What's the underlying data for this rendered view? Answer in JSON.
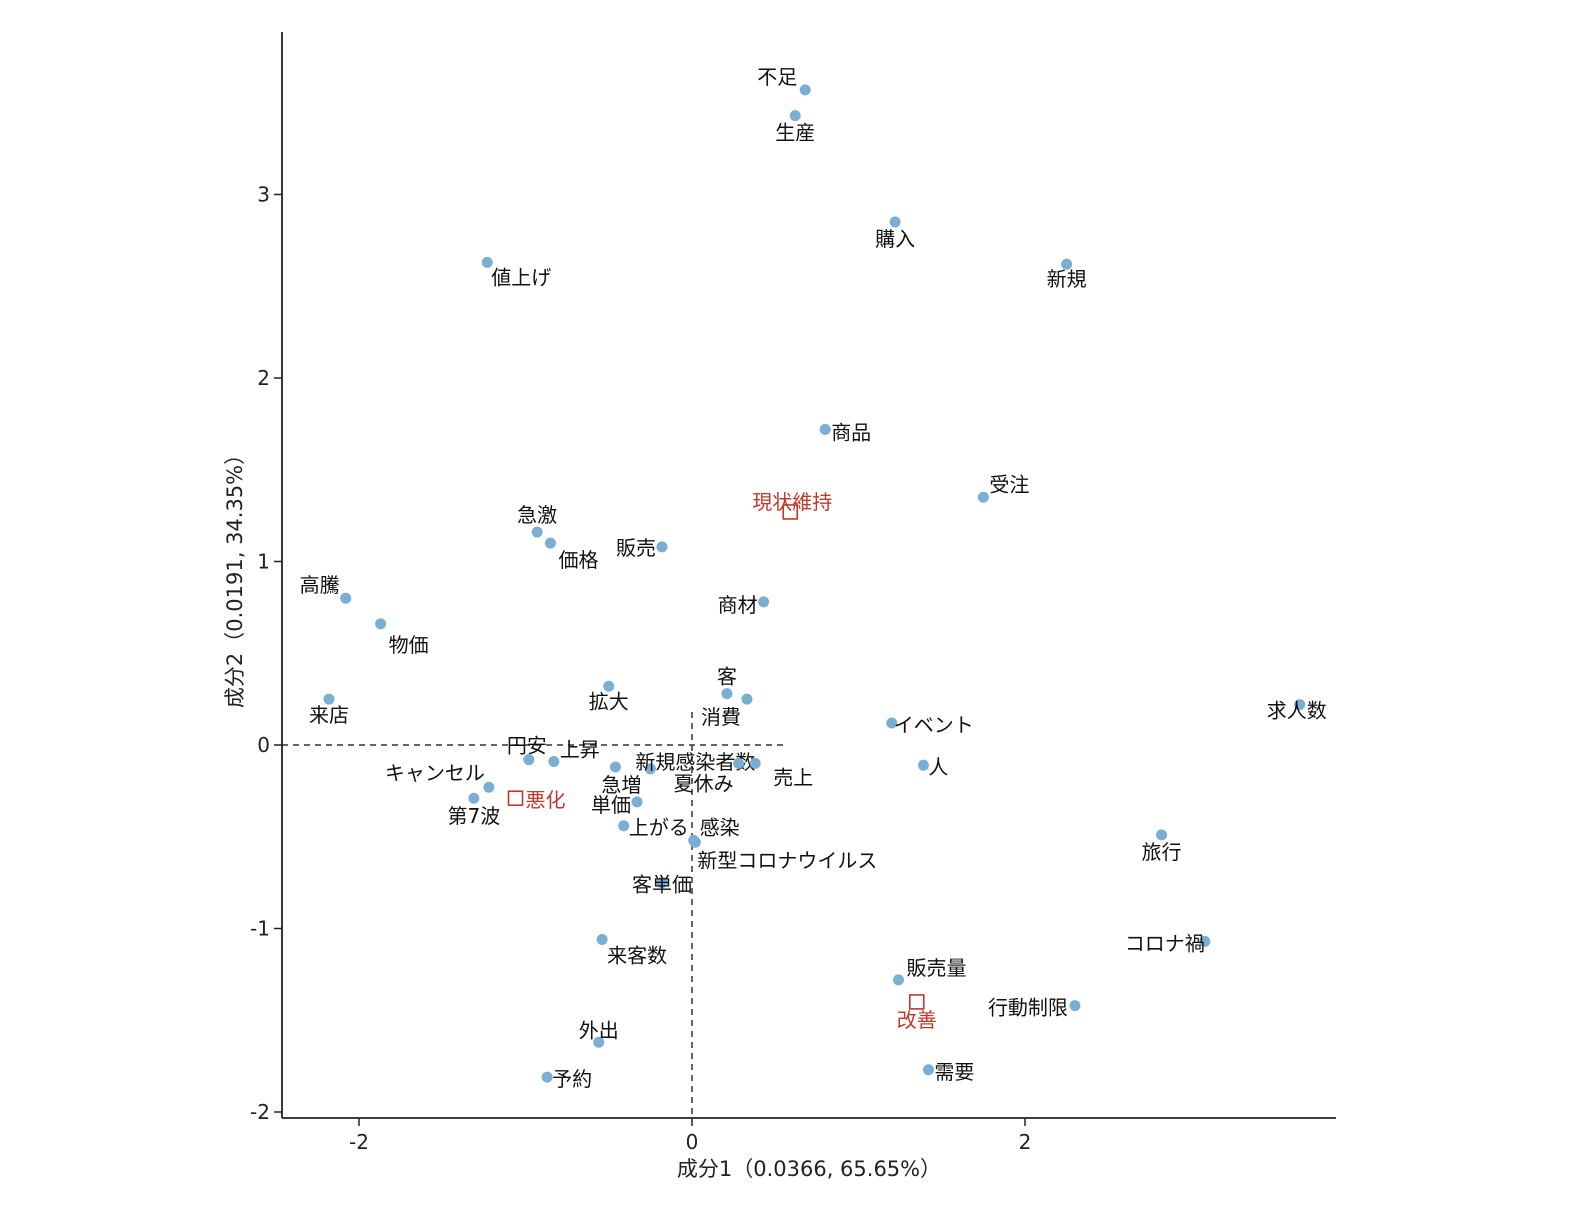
{
  "chart_data": {
    "type": "scatter",
    "title": "",
    "xlabel": "成分1（0.0366, 65.65%）",
    "ylabel": "成分2（0.0191, 34.35%）",
    "xlim": [
      -2.5,
      3.9
    ],
    "ylim": [
      -2.05,
      3.85
    ],
    "xticks": [
      -2,
      0,
      2
    ],
    "yticks": [
      -2,
      -1,
      0,
      1,
      2,
      3
    ],
    "reference_lines": {
      "x": 0,
      "y": 0,
      "style": "dashed"
    },
    "grid": false,
    "point_color": "#7aaed2",
    "category_color": "#c0392b",
    "series": [
      {
        "values": [
          {
            "label": "不足",
            "x": 0.68,
            "y": 3.57
          },
          {
            "label": "生産",
            "x": 0.62,
            "y": 3.43
          },
          {
            "label": "購入",
            "x": 1.22,
            "y": 2.85
          },
          {
            "label": "値上げ",
            "x": -1.23,
            "y": 2.63
          },
          {
            "label": "新規",
            "x": 2.25,
            "y": 2.62
          },
          {
            "label": "商品",
            "x": 0.8,
            "y": 1.72
          },
          {
            "label": "受注",
            "x": 1.75,
            "y": 1.35
          },
          {
            "label": "急激",
            "x": -0.93,
            "y": 1.16
          },
          {
            "label": "価格",
            "x": -0.85,
            "y": 1.1
          },
          {
            "label": "販売",
            "x": -0.18,
            "y": 1.08
          },
          {
            "label": "高騰",
            "x": -2.08,
            "y": 0.8
          },
          {
            "label": "商材",
            "x": 0.43,
            "y": 0.78
          },
          {
            "label": "物価",
            "x": -1.87,
            "y": 0.66
          },
          {
            "label": "拡大",
            "x": -0.5,
            "y": 0.32
          },
          {
            "label": "客",
            "x": 0.21,
            "y": 0.28
          },
          {
            "label": "消費",
            "x": 0.33,
            "y": 0.25
          },
          {
            "label": "来店",
            "x": -2.18,
            "y": 0.25
          },
          {
            "label": "求人数",
            "x": 3.65,
            "y": 0.22
          },
          {
            "label": "イベント",
            "x": 1.2,
            "y": 0.12
          },
          {
            "label": "円安",
            "x": -0.98,
            "y": -0.08
          },
          {
            "label": "上昇",
            "x": -0.83,
            "y": -0.09
          },
          {
            "label": "新規感染者数",
            "x": -0.25,
            "y": -0.13
          },
          {
            "label": "急増",
            "x": -0.46,
            "y": -0.12
          },
          {
            "label": "夏休み",
            "x": 0.28,
            "y": -0.1
          },
          {
            "label": "売上",
            "x": 0.38,
            "y": -0.1
          },
          {
            "label": "人",
            "x": 1.39,
            "y": -0.11
          },
          {
            "label": "キャンセル",
            "x": -1.22,
            "y": -0.23
          },
          {
            "label": "第7波",
            "x": -1.31,
            "y": -0.29
          },
          {
            "label": "単価",
            "x": -0.33,
            "y": -0.31
          },
          {
            "label": "上がる",
            "x": -0.41,
            "y": -0.44
          },
          {
            "label": "感染",
            "x": 0.01,
            "y": -0.52
          },
          {
            "label": "新型コロナウイルス",
            "x": 0.02,
            "y": -0.53
          },
          {
            "label": "旅行",
            "x": 2.82,
            "y": -0.49
          },
          {
            "label": "客単価",
            "x": -0.18,
            "y": -0.75
          },
          {
            "label": "来客数",
            "x": -0.54,
            "y": -1.06
          },
          {
            "label": "コロナ禍",
            "x": 3.08,
            "y": -1.07
          },
          {
            "label": "販売量",
            "x": 1.24,
            "y": -1.28
          },
          {
            "label": "行動制限",
            "x": 2.3,
            "y": -1.42
          },
          {
            "label": "外出",
            "x": -0.56,
            "y": -1.62
          },
          {
            "label": "需要",
            "x": 1.42,
            "y": -1.77
          },
          {
            "label": "予約",
            "x": -0.87,
            "y": -1.81
          }
        ]
      }
    ],
    "categories": [
      {
        "label": "現状維持",
        "x": 0.59,
        "y": 1.27
      },
      {
        "label": "悪化",
        "x": -1.06,
        "y": -0.29
      },
      {
        "label": "改善",
        "x": 1.35,
        "y": -1.4
      }
    ]
  }
}
